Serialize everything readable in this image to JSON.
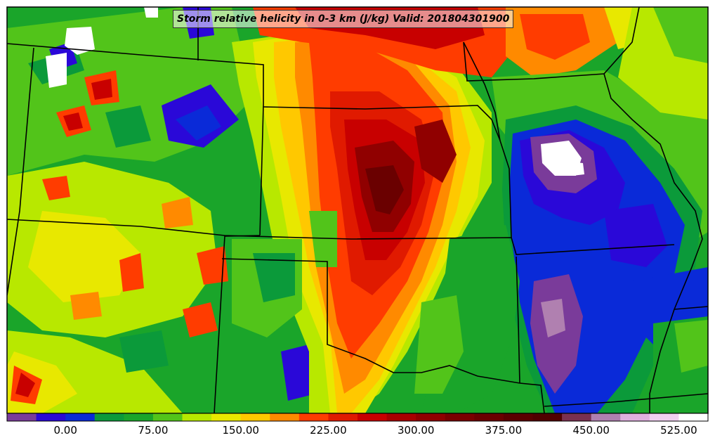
{
  "title": "Storm relative helicity in 0-3 km (J/kg) Valid: 201804301900",
  "colorbar": {
    "colors": [
      "#7a3b9a",
      "#2a08d8",
      "#0a2ad8",
      "#0b9a3a",
      "#1aa52a",
      "#52c41a",
      "#b8e800",
      "#e8e800",
      "#ffc800",
      "#ff8a00",
      "#ff3c00",
      "#e01a00",
      "#c80000",
      "#a80000",
      "#900000",
      "#7a0000",
      "#6a0000",
      "#5a0000",
      "#500000",
      "#7a3050",
      "#b080b0",
      "#e0b0e0",
      "#f0d0f0",
      "#ffffff"
    ],
    "tick_labels": [
      "0.00",
      "75.00",
      "150.00",
      "225.00",
      "300.00",
      "375.00",
      "450.00",
      "525.00"
    ]
  }
}
